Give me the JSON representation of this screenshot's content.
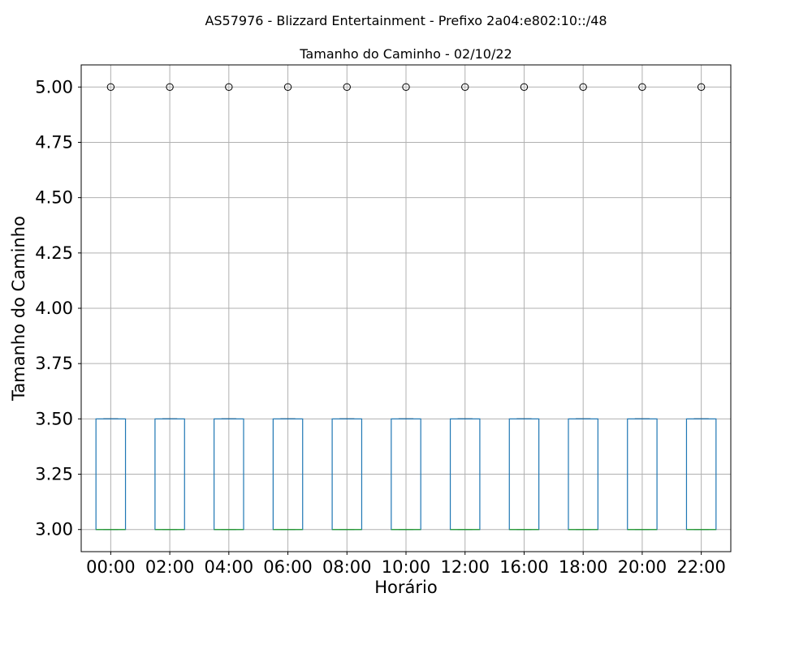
{
  "chart_data": {
    "type": "boxplot",
    "suptitle": "AS57976 - Blizzard Entertainment - Prefixo 2a04:e802:10::/48",
    "title": "Tamanho do Caminho - 02/10/22",
    "xlabel": "Horário",
    "ylabel": "Tamanho do Caminho",
    "ylim": [
      2.9,
      5.1
    ],
    "yticks": [
      3.0,
      3.25,
      3.5,
      3.75,
      4.0,
      4.25,
      4.5,
      4.75,
      5.0
    ],
    "ytick_labels": [
      "3.00",
      "3.25",
      "3.50",
      "3.75",
      "4.00",
      "4.25",
      "4.50",
      "4.75",
      "5.00"
    ],
    "grid": true,
    "categories": [
      "00:00",
      "02:00",
      "04:00",
      "06:00",
      "08:00",
      "10:00",
      "12:00",
      "16:00",
      "18:00",
      "20:00",
      "22:00"
    ],
    "boxes": [
      {
        "whislo": 3.0,
        "q1": 3.0,
        "med": 3.0,
        "q3": 3.5,
        "whishi": 3.5,
        "fliers": [
          5.0
        ]
      },
      {
        "whislo": 3.0,
        "q1": 3.0,
        "med": 3.0,
        "q3": 3.5,
        "whishi": 3.5,
        "fliers": [
          5.0
        ]
      },
      {
        "whislo": 3.0,
        "q1": 3.0,
        "med": 3.0,
        "q3": 3.5,
        "whishi": 3.5,
        "fliers": [
          5.0
        ]
      },
      {
        "whislo": 3.0,
        "q1": 3.0,
        "med": 3.0,
        "q3": 3.5,
        "whishi": 3.5,
        "fliers": [
          5.0
        ]
      },
      {
        "whislo": 3.0,
        "q1": 3.0,
        "med": 3.0,
        "q3": 3.5,
        "whishi": 3.5,
        "fliers": [
          5.0
        ]
      },
      {
        "whislo": 3.0,
        "q1": 3.0,
        "med": 3.0,
        "q3": 3.5,
        "whishi": 3.5,
        "fliers": [
          5.0
        ]
      },
      {
        "whislo": 3.0,
        "q1": 3.0,
        "med": 3.0,
        "q3": 3.5,
        "whishi": 3.5,
        "fliers": [
          5.0
        ]
      },
      {
        "whislo": 3.0,
        "q1": 3.0,
        "med": 3.0,
        "q3": 3.5,
        "whishi": 3.5,
        "fliers": [
          5.0
        ]
      },
      {
        "whislo": 3.0,
        "q1": 3.0,
        "med": 3.0,
        "q3": 3.5,
        "whishi": 3.5,
        "fliers": [
          5.0
        ]
      },
      {
        "whislo": 3.0,
        "q1": 3.0,
        "med": 3.0,
        "q3": 3.5,
        "whishi": 3.5,
        "fliers": [
          5.0
        ]
      },
      {
        "whislo": 3.0,
        "q1": 3.0,
        "med": 3.0,
        "q3": 3.5,
        "whishi": 3.5,
        "fliers": [
          5.0
        ]
      }
    ],
    "colors": {
      "box": "#1f77b4",
      "median": "#2ca02c",
      "whisker": "#000000",
      "grid": "#b0b0b0",
      "flier": "#000000"
    }
  }
}
